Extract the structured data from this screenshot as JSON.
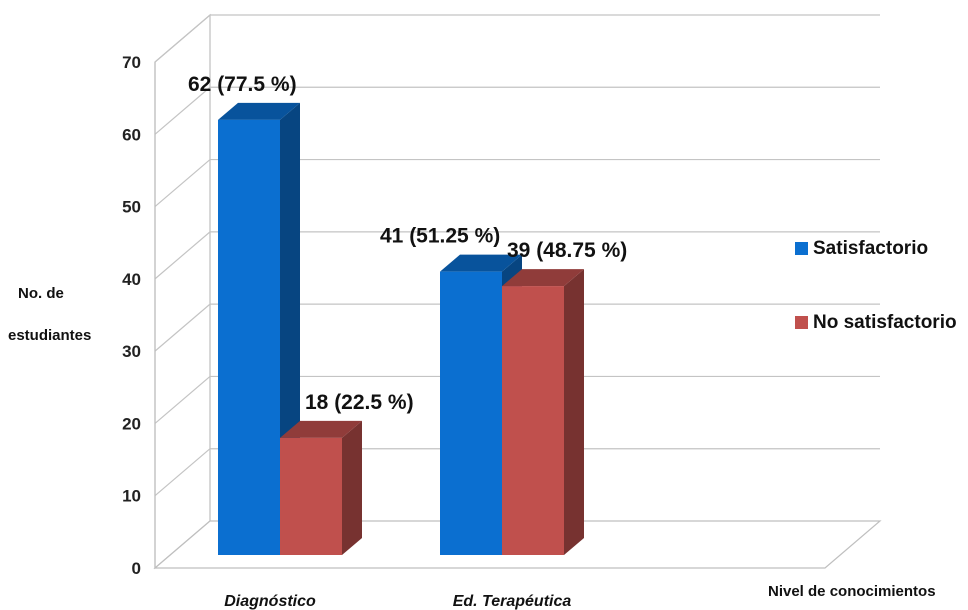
{
  "chart_data": {
    "type": "bar",
    "categories": [
      "Diagnóstico",
      "Ed. Terapéutica"
    ],
    "series": [
      {
        "name": "Satisfactorio",
        "values": [
          62,
          41
        ],
        "labels": [
          "62 (77.5 %)",
          "41 (51.25 %)"
        ],
        "color": "#0b6fd0"
      },
      {
        "name": "No satisfactorio",
        "values": [
          18,
          39
        ],
        "labels": [
          "18 (22.5 %)",
          "39 (48.75 %)"
        ],
        "color": "#c0504d"
      }
    ],
    "ylabel": [
      "No. de",
      "estudiantes"
    ],
    "xlabel": "Nivel de conocimientos",
    "yticks": [
      "0",
      "10",
      "20",
      "30",
      "40",
      "50",
      "60",
      "70"
    ],
    "ylim": [
      0,
      70
    ],
    "grid": true,
    "legend_position": "right"
  }
}
